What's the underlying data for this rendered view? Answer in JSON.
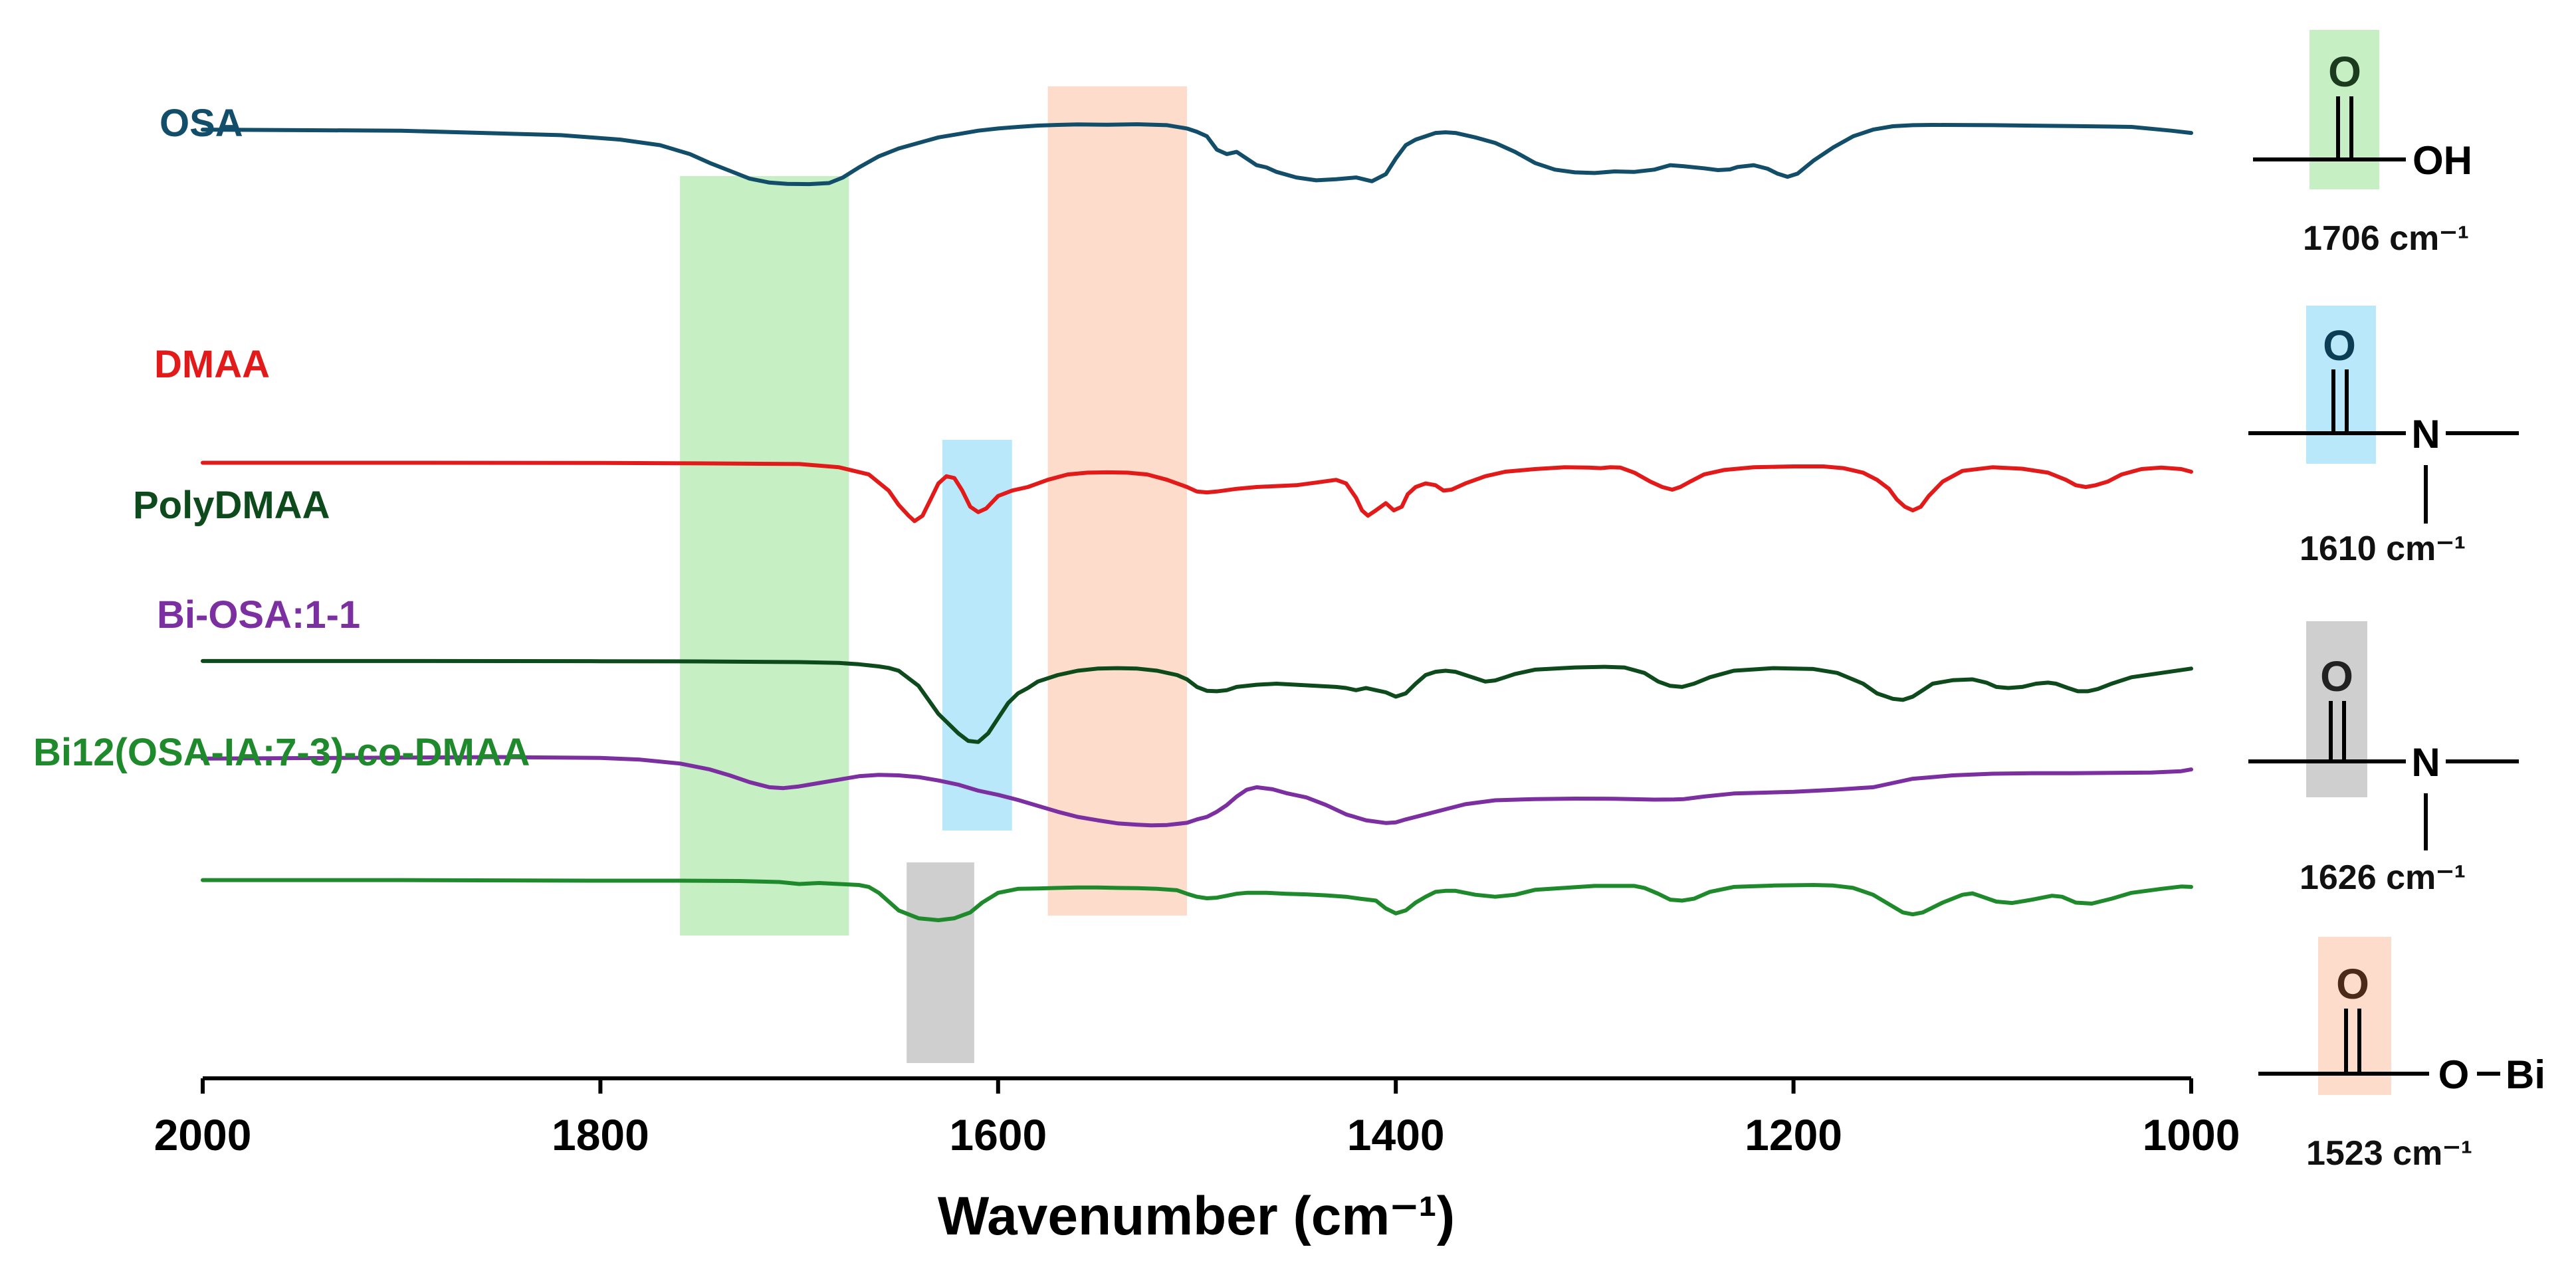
{
  "chart_data": {
    "type": "line",
    "title": "",
    "xlabel": "Wavenumber (cm⁻¹)",
    "ylabel": "",
    "xlim": [
      2000,
      1000
    ],
    "ylim": [
      0,
      100
    ],
    "x_ticks": [
      "2000",
      "1800",
      "1600",
      "1400",
      "1200",
      "1000"
    ],
    "series": [
      {
        "name": "OSA",
        "color": "#124e6a",
        "x": [
          2000,
          1900,
          1820,
          1790,
          1770,
          1755,
          1745,
          1735,
          1725,
          1715,
          1706,
          1695,
          1685,
          1678,
          1670,
          1660,
          1650,
          1640,
          1630,
          1620,
          1610,
          1600,
          1590,
          1580,
          1570,
          1560,
          1545,
          1530,
          1515,
          1505,
          1500,
          1495,
          1490,
          1485,
          1480,
          1475,
          1470,
          1465,
          1460,
          1450,
          1440,
          1430,
          1420,
          1412,
          1405,
          1400,
          1395,
          1390,
          1385,
          1380,
          1375,
          1370,
          1360,
          1350,
          1340,
          1330,
          1320,
          1310,
          1300,
          1290,
          1280,
          1270,
          1262,
          1255,
          1245,
          1238,
          1232,
          1228,
          1220,
          1213,
          1208,
          1203,
          1198,
          1190,
          1180,
          1170,
          1160,
          1150,
          1140,
          1130,
          1100,
          1060,
          1030,
          1010,
          1000
        ],
        "y": [
          97,
          96.5,
          94.5,
          92.5,
          90,
          86,
          82,
          78.5,
          75,
          73.2,
          72.6,
          72.5,
          73,
          75.5,
          80,
          85,
          88.5,
          91,
          93.5,
          95,
          96.5,
          97.5,
          98.2,
          98.8,
          99.1,
          99.3,
          99.2,
          99.4,
          99,
          97.5,
          96,
          94,
          88,
          86,
          87,
          84,
          81,
          80,
          78,
          75.5,
          74.2,
          74.7,
          75.5,
          73.8,
          77,
          84,
          90,
          92.5,
          94,
          95.5,
          95.8,
          95.5,
          93.5,
          91,
          87,
          82,
          79,
          77.8,
          77.5,
          78.2,
          78,
          79,
          81,
          80.5,
          79.6,
          78.8,
          79.1,
          80.2,
          81,
          79.4,
          77.2,
          75.8,
          77.2,
          83,
          89,
          94,
          97,
          98.5,
          99,
          99.1,
          99,
          98.6,
          98.2,
          96.5,
          95.5
        ]
      },
      {
        "name": "DMAA",
        "color": "#e31a1a",
        "x": [
          2000,
          1900,
          1800,
          1750,
          1700,
          1680,
          1665,
          1655,
          1650,
          1645,
          1642,
          1638,
          1634,
          1630,
          1626,
          1622,
          1618,
          1614,
          1610,
          1606,
          1600,
          1593,
          1585,
          1575,
          1565,
          1555,
          1545,
          1535,
          1525,
          1515,
          1505,
          1500,
          1495,
          1490,
          1480,
          1470,
          1460,
          1450,
          1440,
          1430,
          1425,
          1420,
          1417,
          1414,
          1410,
          1405,
          1401,
          1397,
          1394,
          1390,
          1385,
          1380,
          1376,
          1372,
          1365,
          1355,
          1345,
          1330,
          1315,
          1303,
          1297,
          1292,
          1287,
          1280,
          1272,
          1266,
          1261,
          1257,
          1252,
          1245,
          1235,
          1220,
          1200,
          1185,
          1175,
          1165,
          1158,
          1152,
          1148,
          1144,
          1140,
          1136,
          1132,
          1125,
          1115,
          1100,
          1085,
          1072,
          1063,
          1058,
          1053,
          1048,
          1042,
          1035,
          1025,
          1015,
          1005,
          1000
        ],
        "y": [
          73.5,
          73.5,
          73.4,
          73.2,
          72.8,
          71,
          67,
          58,
          50,
          44,
          41,
          44,
          53,
          62,
          66,
          65,
          58,
          49,
          46,
          48,
          55,
          58,
          60,
          64,
          67,
          68,
          68.2,
          68,
          67,
          64,
          60,
          57.5,
          57,
          57.5,
          59,
          60,
          60.5,
          61,
          62.5,
          64,
          62,
          54,
          47,
          44,
          47,
          51,
          47,
          49,
          56,
          60,
          62,
          61,
          58,
          58.5,
          62,
          66,
          68.5,
          70,
          71,
          70.8,
          70.5,
          71,
          70.8,
          68,
          63,
          60,
          58.5,
          60,
          63,
          67,
          69.5,
          71,
          71.5,
          71.5,
          70.5,
          68,
          64,
          59,
          53,
          49,
          47,
          49,
          55,
          63,
          69,
          71,
          70.2,
          68,
          64,
          61,
          60,
          61,
          63,
          67,
          70,
          70.8,
          70,
          68.5
        ]
      },
      {
        "name": "PolyDMAA",
        "color": "#0d4a1c",
        "x": [
          2000,
          1900,
          1800,
          1750,
          1700,
          1680,
          1670,
          1665,
          1660,
          1655,
          1650,
          1640,
          1630,
          1620,
          1615,
          1610,
          1605,
          1600,
          1595,
          1590,
          1585,
          1580,
          1570,
          1560,
          1550,
          1540,
          1530,
          1520,
          1510,
          1505,
          1500,
          1495,
          1490,
          1485,
          1480,
          1470,
          1460,
          1450,
          1440,
          1430,
          1425,
          1420,
          1415,
          1410,
          1405,
          1400,
          1395,
          1390,
          1385,
          1380,
          1375,
          1370,
          1365,
          1360,
          1355,
          1350,
          1345,
          1340,
          1330,
          1310,
          1295,
          1285,
          1275,
          1268,
          1262,
          1256,
          1250,
          1242,
          1230,
          1210,
          1190,
          1178,
          1165,
          1158,
          1150,
          1145,
          1140,
          1135,
          1130,
          1120,
          1110,
          1103,
          1098,
          1092,
          1085,
          1078,
          1072,
          1068,
          1062,
          1057,
          1052,
          1047,
          1040,
          1030,
          1015,
          1000
        ],
        "y": [
          58.5,
          58.5,
          58.4,
          58.3,
          58,
          57.6,
          57,
          56.5,
          56,
          55.3,
          54,
          47,
          34,
          25,
          21.5,
          21,
          25,
          32,
          39,
          43.5,
          46,
          49,
          52,
          54,
          55,
          55.2,
          55,
          54,
          52,
          50,
          46.5,
          44.7,
          44.5,
          45,
          46.5,
          47.5,
          48,
          47.5,
          47,
          46.5,
          46,
          45,
          46,
          45,
          44,
          42,
          43.5,
          48,
          52,
          53.5,
          54,
          53.5,
          52,
          50.5,
          49,
          49.5,
          51,
          52.5,
          54.5,
          55.5,
          55.8,
          55.5,
          53,
          49,
          47,
          46.5,
          48,
          51,
          54,
          55.2,
          54.8,
          53,
          48,
          43.5,
          41,
          40.5,
          42,
          45,
          48,
          49.6,
          50,
          48.5,
          46.5,
          46,
          46.5,
          48,
          48.5,
          48,
          46,
          44.5,
          44.5,
          45.5,
          48,
          51,
          53,
          55
        ]
      },
      {
        "name": "Bi-OSA:1-1",
        "color": "#7b2fa0",
        "x": [
          2000,
          1900,
          1850,
          1800,
          1780,
          1760,
          1745,
          1735,
          1725,
          1715,
          1708,
          1700,
          1690,
          1680,
          1670,
          1660,
          1650,
          1640,
          1630,
          1620,
          1610,
          1600,
          1590,
          1580,
          1570,
          1560,
          1550,
          1540,
          1530,
          1523,
          1515,
          1505,
          1500,
          1495,
          1490,
          1485,
          1480,
          1475,
          1470,
          1462,
          1455,
          1445,
          1435,
          1425,
          1415,
          1405,
          1400,
          1395,
          1385,
          1375,
          1365,
          1350,
          1330,
          1310,
          1290,
          1270,
          1260,
          1255,
          1245,
          1230,
          1200,
          1180,
          1160,
          1150,
          1140,
          1130,
          1120,
          1100,
          1080,
          1060,
          1040,
          1020,
          1005,
          1000
        ],
        "y": [
          44.4,
          45,
          45.3,
          44.8,
          43.8,
          41.5,
          38,
          34.5,
          30.5,
          27.5,
          27,
          28,
          30,
          32,
          34,
          34.8,
          34.5,
          33.5,
          31.5,
          29,
          25.5,
          23,
          20,
          16.5,
          13,
          10,
          8,
          6.2,
          5.4,
          5,
          5.2,
          6.5,
          8.5,
          10,
          13,
          17,
          22,
          26,
          27.5,
          26.3,
          24,
          21.5,
          17,
          11.5,
          8,
          6.4,
          6.8,
          8.5,
          11.5,
          14.5,
          17.5,
          19.8,
          20.5,
          20.8,
          20.7,
          20.2,
          20.3,
          20.5,
          22,
          23.8,
          24.8,
          26,
          27.5,
          30,
          32.5,
          33.5,
          34.5,
          35.5,
          35.8,
          35.8,
          36,
          36.2,
          37,
          38
        ]
      },
      {
        "name": "Bi12(OSA-IA:7-3)-co-DMAA",
        "color": "#1e8a2c",
        "x": [
          2000,
          1900,
          1800,
          1760,
          1730,
          1710,
          1700,
          1690,
          1680,
          1670,
          1665,
          1660,
          1650,
          1640,
          1630,
          1622,
          1614,
          1608,
          1600,
          1590,
          1580,
          1570,
          1560,
          1550,
          1540,
          1530,
          1520,
          1510,
          1505,
          1500,
          1495,
          1490,
          1485,
          1480,
          1475,
          1465,
          1455,
          1445,
          1435,
          1425,
          1418,
          1410,
          1405,
          1400,
          1395,
          1390,
          1385,
          1380,
          1375,
          1370,
          1360,
          1350,
          1340,
          1330,
          1300,
          1280,
          1275,
          1268,
          1262,
          1256,
          1250,
          1242,
          1230,
          1210,
          1190,
          1180,
          1170,
          1160,
          1150,
          1145,
          1140,
          1135,
          1125,
          1115,
          1110,
          1105,
          1098,
          1090,
          1080,
          1070,
          1065,
          1058,
          1050,
          1040,
          1030,
          1015,
          1005,
          1000
        ],
        "y": [
          81.5,
          81.5,
          81.2,
          81.2,
          81,
          80.5,
          79.5,
          80,
          79.5,
          79,
          78,
          75,
          66,
          62,
          61,
          62,
          65,
          70,
          75,
          77,
          77.2,
          77.5,
          77.7,
          77.7,
          77.5,
          77.4,
          77,
          76.3,
          74.5,
          73,
          72.2,
          72.5,
          73.5,
          74.5,
          75,
          75,
          74.5,
          74.2,
          73.7,
          73,
          72,
          71,
          67,
          64.5,
          66,
          70,
          73,
          75.5,
          76,
          76,
          74,
          73,
          74,
          76.5,
          78.5,
          78.5,
          77.5,
          74.5,
          71.5,
          71,
          72,
          75.5,
          78,
          78.7,
          79,
          78.7,
          77.5,
          74,
          68,
          65,
          64,
          65,
          70,
          74,
          74.7,
          73,
          70.5,
          69.8,
          71.5,
          73.5,
          73,
          70,
          69.5,
          72,
          75,
          77,
          78.2,
          78
        ]
      }
    ],
    "highlights": [
      {
        "from": 1760,
        "to": 1675,
        "color": "#c7efc4"
      },
      {
        "from": 1628,
        "to": 1593,
        "color": "#b9e8fb"
      },
      {
        "from": 1575,
        "to": 1505,
        "color": "#fddccb"
      },
      {
        "from": 1646,
        "to": 1612,
        "color": "#cfcfcf"
      }
    ]
  },
  "annotations": [
    {
      "formula": "O",
      "group": "OH",
      "wavenumber": "1706 cm⁻¹",
      "box_color": "#c7efc4",
      "o_color": "#1b3a1e"
    },
    {
      "formula": "O",
      "group": "N",
      "wavenumber": "1610 cm⁻¹",
      "box_color": "#b9e8fb",
      "o_color": "#0b3e55"
    },
    {
      "formula": "O",
      "group": "N",
      "wavenumber": "1626 cm⁻¹",
      "box_color": "#cfcfcf",
      "o_color": "#222222"
    },
    {
      "formula": "O",
      "group1": "O",
      "group2": "Bi",
      "wavenumber": "1523 cm⁻¹",
      "box_color": "#fddccb",
      "o_color": "#4b2a1a"
    }
  ]
}
